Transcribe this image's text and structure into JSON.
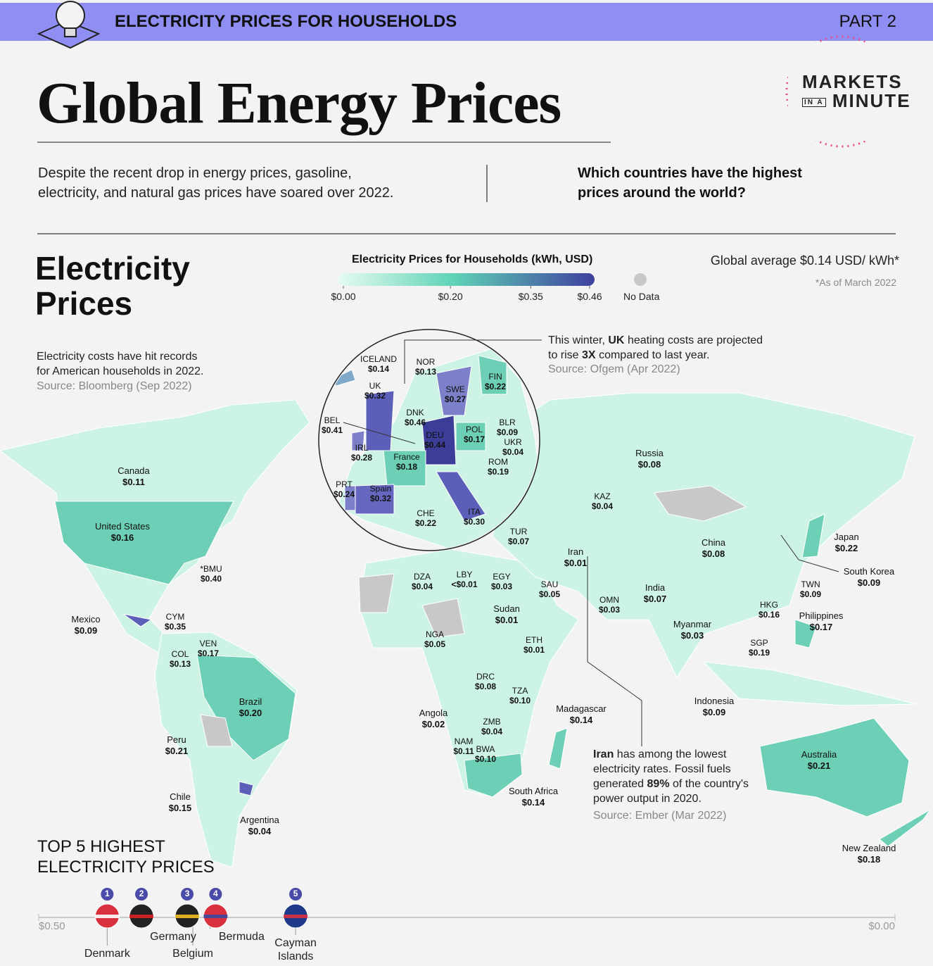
{
  "header": {
    "topic": "ELECTRICITY PRICES FOR HOUSEHOLDS",
    "part": "PART 2",
    "title": "Global Energy Prices",
    "brand": [
      "MARKETS",
      "IN A",
      "MINUTE"
    ],
    "intro": "Despite the recent drop in energy prices, gasoline, electricity, and natural gas prices have soared over 2022.",
    "question": "Which countries have the highest prices around the world?"
  },
  "section": {
    "title": "Electricity Prices",
    "legend_title": "Electricity Prices for Households (kWh, USD)",
    "legend_ticks": [
      {
        "value": 0,
        "label": "$0.00"
      },
      {
        "value": 0.2,
        "label": "$0.20"
      },
      {
        "value": 0.35,
        "label": "$0.35"
      },
      {
        "value": 0.46,
        "label": "$0.46"
      }
    ],
    "no_data": "No Data",
    "global_average": "Global average $0.14 USD/ kWh*",
    "footnote": "*As of March 2022"
  },
  "notes": {
    "us": "Electricity costs have hit records for American households in 2022.",
    "us_source": "Source: Bloomberg (Sep 2022)",
    "uk": [
      "This winter,",
      "UK",
      "heating costs are projected to rise",
      "3X",
      "compared to last year."
    ],
    "uk_source": "Source: Ofgem (Apr 2022)",
    "iran": [
      "Iran",
      "has among the lowest electricity rates. Fossil fuels generated",
      "89%",
      "of the country's power output in 2020."
    ],
    "iran_source": "Source:  Ember (Mar 2022)"
  },
  "countries": [
    [
      "Canada",
      "$0.11"
    ],
    [
      "United States",
      "$0.16"
    ],
    [
      "*BMU",
      "$0.40"
    ],
    [
      "Mexico",
      "$0.09"
    ],
    [
      "CYM",
      "$0.35"
    ],
    [
      "COL",
      "$0.13"
    ],
    [
      "VEN",
      "$0.17"
    ],
    [
      "Brazil",
      "$0.20"
    ],
    [
      "Peru",
      "$0.21"
    ],
    [
      "Chile",
      "$0.15"
    ],
    [
      "Argentina",
      "$0.04"
    ],
    [
      "DZA",
      "$0.04"
    ],
    [
      "LBY",
      "<$0.01"
    ],
    [
      "EGY",
      "$0.03"
    ],
    [
      "SAU",
      "$0.05"
    ],
    [
      "Iran",
      "$0.01"
    ],
    [
      "TUR",
      "$0.07"
    ],
    [
      "Sudan",
      "$0.01"
    ],
    [
      "NGA",
      "$0.05"
    ],
    [
      "ETH",
      "$0.01"
    ],
    [
      "DRC",
      "$0.08"
    ],
    [
      "TZA",
      "$0.10"
    ],
    [
      "Angola",
      "$0.02"
    ],
    [
      "ZMB",
      "$0.04"
    ],
    [
      "NAM",
      "$0.11"
    ],
    [
      "BWA",
      "$0.10"
    ],
    [
      "South Africa",
      "$0.14"
    ],
    [
      "Madagascar",
      "$0.14"
    ],
    [
      "OMN",
      "$0.03"
    ],
    [
      "India",
      "$0.07"
    ],
    [
      "Myanmar",
      "$0.03"
    ],
    [
      "Russia",
      "$0.08"
    ],
    [
      "KAZ",
      "$0.04"
    ],
    [
      "China",
      "$0.08"
    ],
    [
      "Japan",
      "$0.22"
    ],
    [
      "South Korea",
      "$0.09"
    ],
    [
      "TWN",
      "$0.09"
    ],
    [
      "HKG",
      "$0.16"
    ],
    [
      "Philippines",
      "$0.17"
    ],
    [
      "SGP",
      "$0.19"
    ],
    [
      "Indonesia",
      "$0.09"
    ],
    [
      "Australia",
      "$0.21"
    ],
    [
      "New Zealand",
      "$0.18"
    ],
    [
      "ICELAND",
      "$0.14"
    ],
    [
      "NOR",
      "$0.13"
    ],
    [
      "FIN",
      "$0.22"
    ],
    [
      "UK",
      "$0.32"
    ],
    [
      "SWE",
      "$0.27"
    ],
    [
      "DNK",
      "$0.46"
    ],
    [
      "BEL",
      "$0.41"
    ],
    [
      "BLR",
      "$0.09"
    ],
    [
      "POL",
      "$0.17"
    ],
    [
      "DEU",
      "$0.44"
    ],
    [
      "UKR",
      "$0.04"
    ],
    [
      "IRL",
      "$0.28"
    ],
    [
      "France",
      "$0.18"
    ],
    [
      "ROM",
      "$0.19"
    ],
    [
      "PRT",
      "$0.24"
    ],
    [
      "Spain",
      "$0.32"
    ],
    [
      "CHE",
      "$0.22"
    ],
    [
      "ITA",
      "$0.30"
    ]
  ],
  "top5": {
    "title": "TOP 5 HIGHEST ELECTRICITY PRICES",
    "ticks": [
      {
        "value": 0.5,
        "label": "$0.50"
      },
      {
        "value": 0,
        "label": "$0.00"
      }
    ],
    "items": [
      {
        "rank": 1,
        "name": "Denmark",
        "value": 0.46
      },
      {
        "rank": 2,
        "name": "Germany",
        "value": 0.44
      },
      {
        "rank": 3,
        "name": "Belgium",
        "value": 0.41
      },
      {
        "rank": 4,
        "name": "Bermuda",
        "value": 0.4
      },
      {
        "rank": 5,
        "name": "Cayman Islands",
        "value": 0.35
      }
    ]
  }
}
